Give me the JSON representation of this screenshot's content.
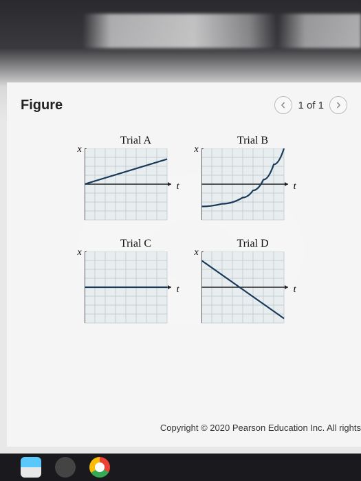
{
  "header": {
    "title": "Figure",
    "pager": {
      "current": 1,
      "total": 1,
      "text": "1 of 1"
    }
  },
  "axes": {
    "y_label": "x",
    "x_label": "t"
  },
  "charts": {
    "grid_cols": 8,
    "grid_rows": 8,
    "grid_color": "#b8c4c8",
    "axis_color": "#222222",
    "line_color": "#1a3a5a",
    "line_width": 2.2,
    "background": "#e8edef",
    "items": [
      {
        "title": "Trial A",
        "type": "line",
        "origin_row": 4,
        "points": [
          [
            0,
            4
          ],
          [
            8,
            1.2
          ]
        ]
      },
      {
        "title": "Trial B",
        "type": "curve",
        "origin_row": 4,
        "points": [
          [
            0,
            6.5
          ],
          [
            2,
            6.2
          ],
          [
            4,
            5.5
          ],
          [
            5,
            4.7
          ],
          [
            6,
            3.5
          ],
          [
            7,
            1.8
          ],
          [
            8,
            0
          ]
        ]
      },
      {
        "title": "Trial C",
        "type": "line",
        "origin_row": 4,
        "points": [
          [
            0,
            4
          ],
          [
            8,
            4
          ]
        ]
      },
      {
        "title": "Trial D",
        "type": "line",
        "origin_row": 4,
        "points": [
          [
            0,
            1
          ],
          [
            8,
            7.5
          ]
        ]
      }
    ]
  },
  "copyright": "Copyright © 2020 Pearson Education Inc. All rights",
  "colors": {
    "page_bg": "#f5f5f5",
    "text": "#222222"
  }
}
